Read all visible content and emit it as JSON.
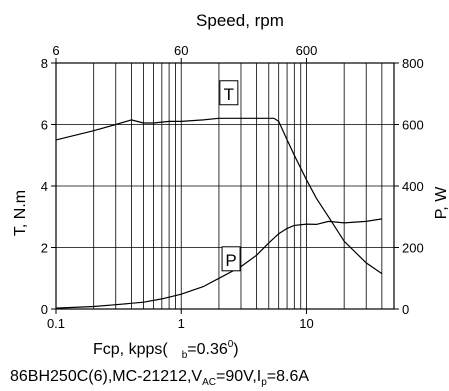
{
  "chart_data": {
    "type": "line",
    "top_axis_title": "Speed, rpm",
    "top_ticks": [
      "6",
      "60",
      "600"
    ],
    "bottom_axis_title_main": "Fcp, kpps(",
    "bottom_axis_title_sub": "b",
    "bottom_axis_title_val": "=0.36",
    "bottom_axis_title_sup": "0",
    "bottom_axis_title_end": ")",
    "left_axis_title": "T, N.m",
    "right_axis_title": "P, W",
    "left_ticks": [
      "0",
      "2",
      "4",
      "6",
      "8"
    ],
    "right_ticks": [
      "0",
      "200",
      "400",
      "600",
      "800"
    ],
    "bottom_ticks": [
      "0.1",
      "1",
      "10"
    ],
    "xlim": [
      0.1,
      50
    ],
    "ylim_left": [
      0,
      8
    ],
    "ylim_right": [
      0,
      800
    ],
    "x_scale": "log",
    "grid": true,
    "caption_parts": [
      "86BH250C(6),MC-21212,V",
      "AC",
      "=90V,I",
      "p",
      "=8.6A"
    ],
    "series": [
      {
        "name": "T",
        "axis": "left",
        "x": [
          0.1,
          0.2,
          0.3,
          0.4,
          0.5,
          0.6,
          0.8,
          1.0,
          1.5,
          2.0,
          3.0,
          4.0,
          5.0,
          5.5,
          6.0,
          7.0,
          8.0,
          10.0,
          12.0,
          15.0,
          20.0,
          30.0,
          40.0
        ],
        "y": [
          5.5,
          5.8,
          6.0,
          6.15,
          6.05,
          6.05,
          6.1,
          6.1,
          6.15,
          6.2,
          6.2,
          6.2,
          6.2,
          6.2,
          6.1,
          5.5,
          5.0,
          4.2,
          3.6,
          3.0,
          2.2,
          1.5,
          1.15
        ]
      },
      {
        "name": "P",
        "axis": "right",
        "x": [
          0.1,
          0.2,
          0.3,
          0.5,
          0.7,
          1.0,
          1.5,
          2.0,
          3.0,
          4.0,
          5.0,
          6.0,
          7.0,
          8.0,
          10.0,
          12.0,
          15.0,
          20.0,
          30.0,
          40.0
        ],
        "y": [
          3,
          8,
          14,
          22,
          33,
          48,
          73,
          100,
          138,
          175,
          215,
          245,
          262,
          272,
          276,
          275,
          285,
          280,
          285,
          293
        ]
      }
    ],
    "curve_labels": [
      "T",
      "P"
    ]
  }
}
